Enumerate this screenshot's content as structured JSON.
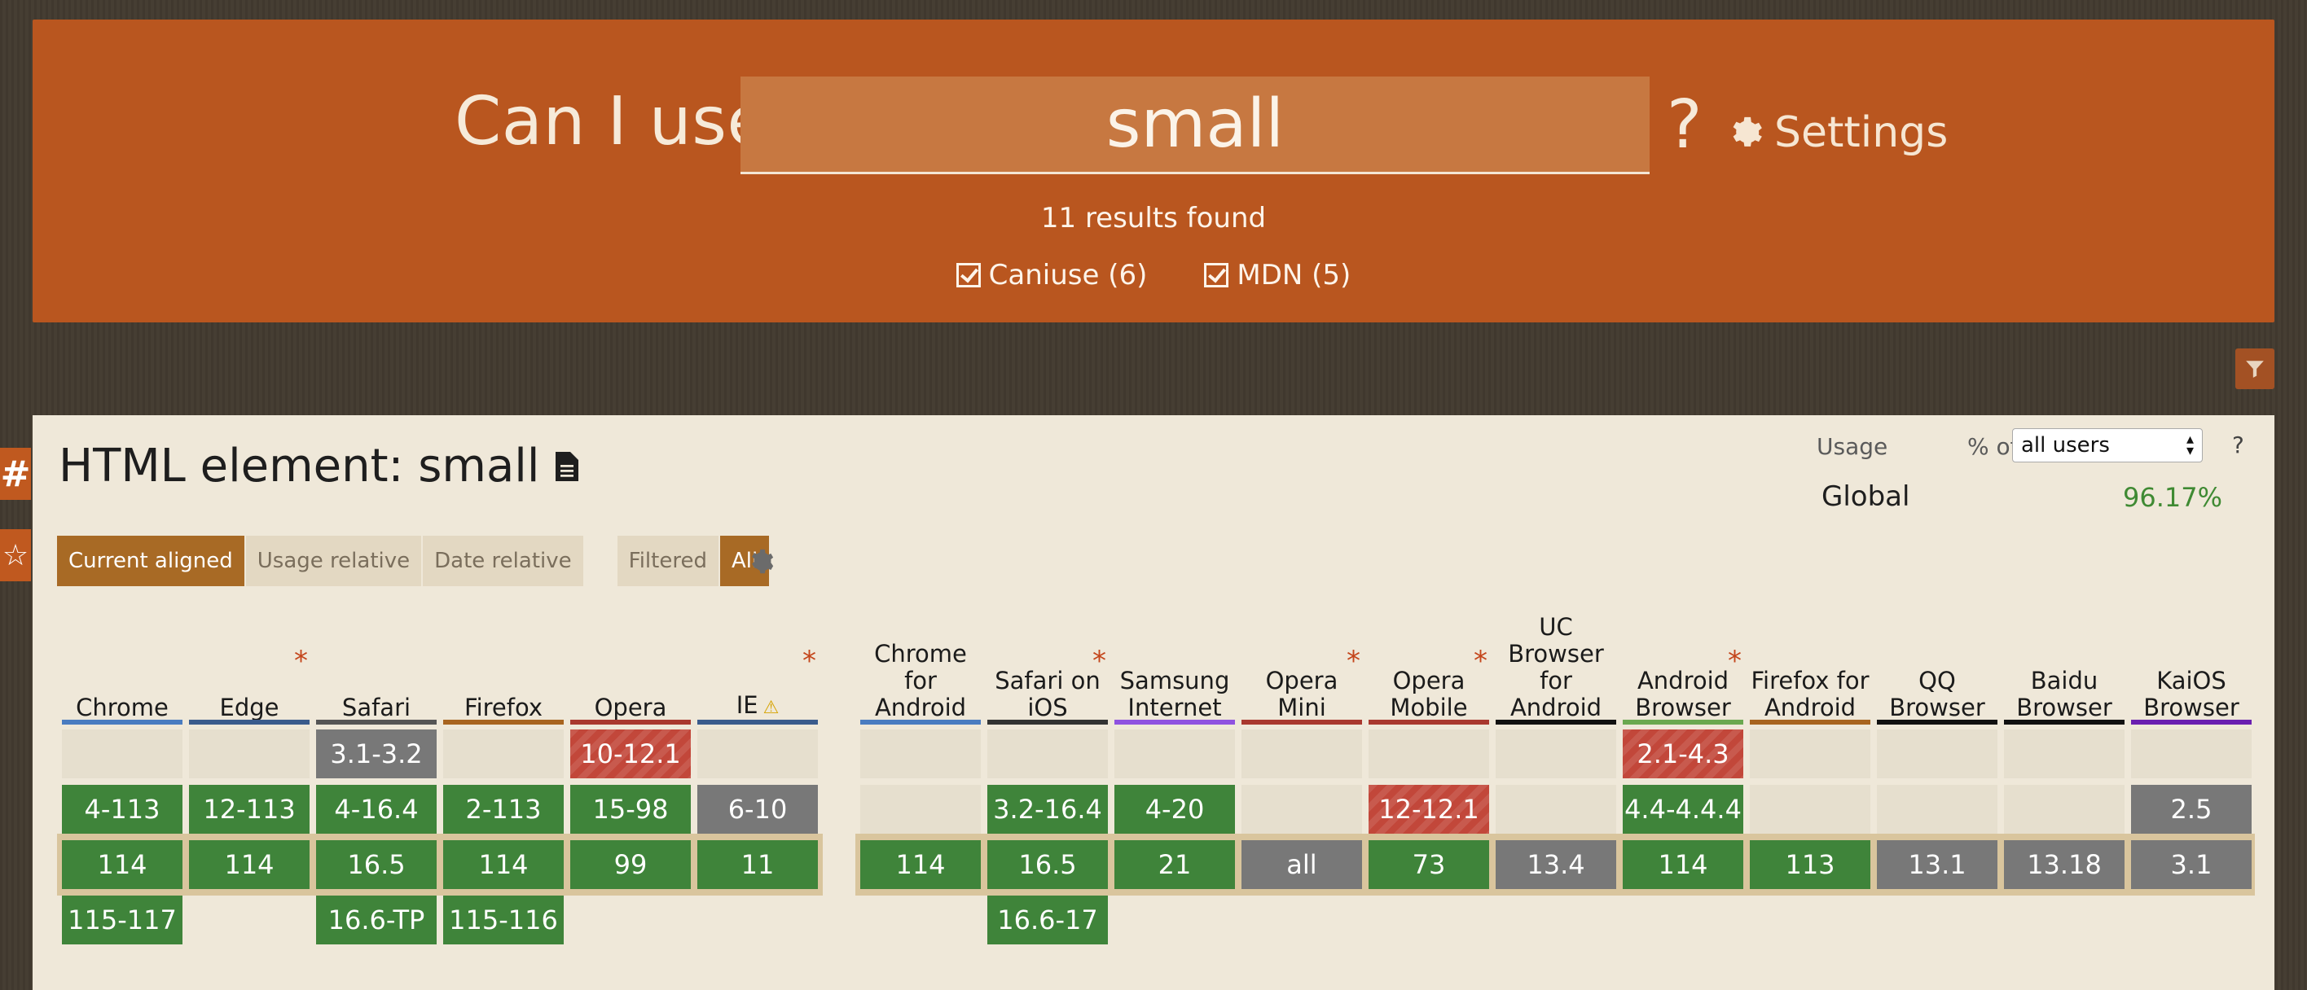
{
  "header": {
    "prefix": "Can I use",
    "search_value": "small",
    "help": "?",
    "settings_label": "Settings",
    "results": "11 results found",
    "filters": [
      {
        "label": "Caniuse (6)",
        "checked": true
      },
      {
        "label": "MDN (5)",
        "checked": true
      }
    ]
  },
  "side": {
    "anchor": "#",
    "star": "☆"
  },
  "feature": {
    "title": "HTML element: small",
    "usage_label": "Usage",
    "pct_label": "% of",
    "users_option": "all users",
    "usage_help": "?",
    "global_label": "Global",
    "global_value": "96.17%",
    "view_buttons": [
      "Current aligned",
      "Usage relative",
      "Date relative"
    ],
    "active_view": "Current aligned",
    "filter_buttons": [
      "Filtered",
      "All"
    ],
    "active_filter": "All"
  },
  "colors": {
    "supported": "#3f843a",
    "not_supported": "#c2473a",
    "unknown": "#787878",
    "header": "#b9561f"
  },
  "desktop": [
    {
      "name": "Chrome",
      "color": "#4a7cc0",
      "asterisk": false,
      "cells": [
        [
          "e",
          ""
        ],
        [
          "y",
          "4-113"
        ],
        [
          "y",
          "114"
        ],
        [
          "y",
          "115-117"
        ]
      ]
    },
    {
      "name": "Edge",
      "color": "#3a5b8c",
      "asterisk": true,
      "cells": [
        [
          "e",
          ""
        ],
        [
          "y",
          "12-113"
        ],
        [
          "y",
          "114"
        ],
        [
          "",
          ""
        ]
      ]
    },
    {
      "name": "Safari",
      "color": "#555555",
      "asterisk": false,
      "cells": [
        [
          "u",
          "3.1-3.2"
        ],
        [
          "y",
          "4-16.4"
        ],
        [
          "y",
          "16.5"
        ],
        [
          "y",
          "16.6-TP"
        ]
      ]
    },
    {
      "name": "Firefox",
      "color": "#a8641f",
      "asterisk": false,
      "cells": [
        [
          "e",
          ""
        ],
        [
          "y",
          "2-113"
        ],
        [
          "y",
          "114"
        ],
        [
          "y",
          "115-116"
        ]
      ]
    },
    {
      "name": "Opera",
      "color": "#a9382e",
      "asterisk": false,
      "cells": [
        [
          "n",
          "10-12.1"
        ],
        [
          "y",
          "15-98"
        ],
        [
          "y",
          "99"
        ],
        [
          "",
          ""
        ]
      ]
    },
    {
      "name": "IE",
      "color": "#3a5b8c",
      "asterisk": true,
      "warn": "⚠",
      "cells": [
        [
          "e",
          ""
        ],
        [
          "u",
          "6-10"
        ],
        [
          "y",
          "11"
        ],
        [
          "",
          ""
        ]
      ]
    }
  ],
  "mobile": [
    {
      "name": "Chrome for Android",
      "color": "#4a7cc0",
      "asterisk": false,
      "cells": [
        [
          "e",
          ""
        ],
        [
          "e",
          ""
        ],
        [
          "y",
          "114"
        ],
        [
          "",
          ""
        ]
      ]
    },
    {
      "name": "Safari on iOS",
      "color": "#333333",
      "asterisk": true,
      "cells": [
        [
          "e",
          ""
        ],
        [
          "y",
          "3.2-16.4"
        ],
        [
          "y",
          "16.5"
        ],
        [
          "y",
          "16.6-17"
        ]
      ]
    },
    {
      "name": "Samsung Internet",
      "color": "#8f52e0",
      "asterisk": false,
      "cells": [
        [
          "e",
          ""
        ],
        [
          "y",
          "4-20"
        ],
        [
          "y",
          "21"
        ],
        [
          "",
          ""
        ]
      ]
    },
    {
      "name": "Opera Mini",
      "color": "#a9382e",
      "asterisk": true,
      "cells": [
        [
          "e",
          ""
        ],
        [
          "e",
          ""
        ],
        [
          "u",
          "all"
        ],
        [
          "",
          ""
        ]
      ]
    },
    {
      "name": "Opera Mobile",
      "color": "#a9382e",
      "asterisk": true,
      "cells": [
        [
          "e",
          ""
        ],
        [
          "n",
          "12-12.1"
        ],
        [
          "y",
          "73"
        ],
        [
          "",
          ""
        ]
      ]
    },
    {
      "name": "UC Browser for Android",
      "color": "#111111",
      "asterisk": false,
      "cells": [
        [
          "e",
          ""
        ],
        [
          "e",
          ""
        ],
        [
          "u",
          "13.4"
        ],
        [
          "",
          ""
        ]
      ]
    },
    {
      "name": "Android Browser",
      "color": "#6aa84f",
      "asterisk": true,
      "cells": [
        [
          "n",
          "2.1-4.3"
        ],
        [
          "y",
          "4.4-4.4.4"
        ],
        [
          "y",
          "114"
        ],
        [
          "",
          ""
        ]
      ]
    },
    {
      "name": "Firefox for Android",
      "color": "#a8641f",
      "asterisk": false,
      "cells": [
        [
          "e",
          ""
        ],
        [
          "e",
          ""
        ],
        [
          "y",
          "113"
        ],
        [
          "",
          ""
        ]
      ]
    },
    {
      "name": "QQ Browser",
      "color": "#111111",
      "asterisk": false,
      "cells": [
        [
          "e",
          ""
        ],
        [
          "e",
          ""
        ],
        [
          "u",
          "13.1"
        ],
        [
          "",
          ""
        ]
      ]
    },
    {
      "name": "Baidu Browser",
      "color": "#111111",
      "asterisk": false,
      "cells": [
        [
          "e",
          ""
        ],
        [
          "e",
          ""
        ],
        [
          "u",
          "13.18"
        ],
        [
          "",
          ""
        ]
      ]
    },
    {
      "name": "KaiOS Browser",
      "color": "#6a1fb0",
      "asterisk": false,
      "cells": [
        [
          "e",
          ""
        ],
        [
          "u",
          "2.5"
        ],
        [
          "u",
          "3.1"
        ],
        [
          "",
          ""
        ]
      ]
    }
  ]
}
